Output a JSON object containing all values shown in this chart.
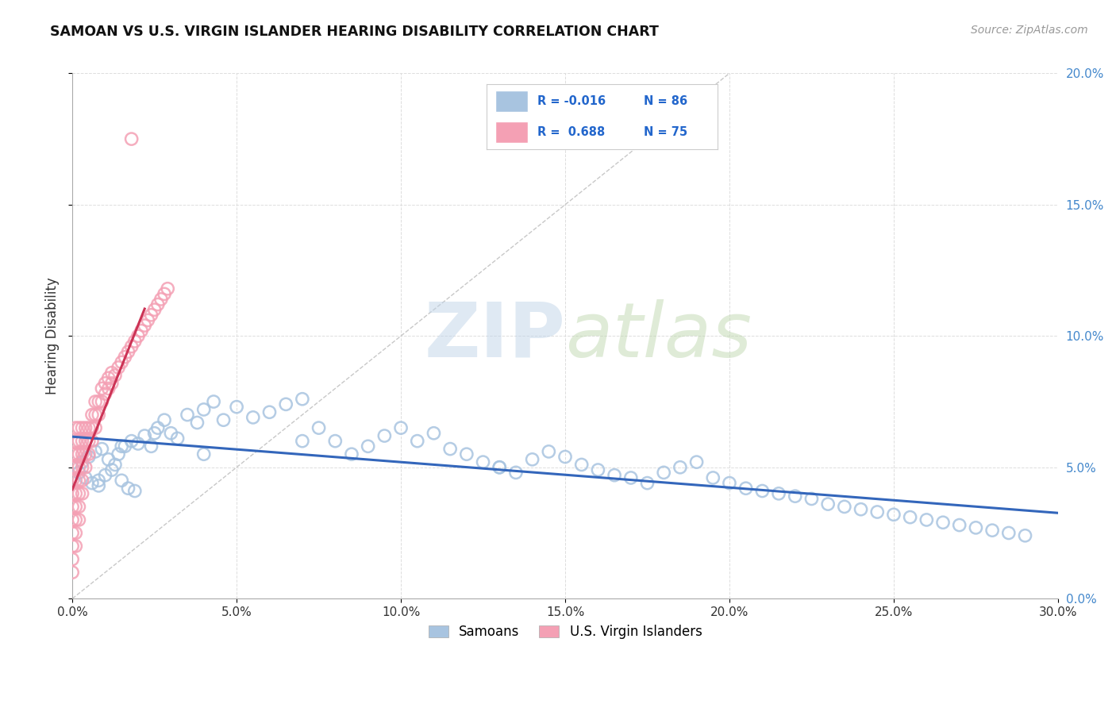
{
  "title": "SAMOAN VS U.S. VIRGIN ISLANDER HEARING DISABILITY CORRELATION CHART",
  "source_text": "Source: ZipAtlas.com",
  "ylabel": "Hearing Disability",
  "xlim": [
    0.0,
    0.3
  ],
  "ylim": [
    0.0,
    0.2
  ],
  "xticks": [
    0.0,
    0.05,
    0.1,
    0.15,
    0.2,
    0.25,
    0.3
  ],
  "yticks": [
    0.0,
    0.05,
    0.1,
    0.15,
    0.2
  ],
  "xtick_labels": [
    "0.0%",
    "5.0%",
    "10.0%",
    "15.0%",
    "20.0%",
    "25.0%",
    "30.0%"
  ],
  "ytick_labels": [
    "0.0%",
    "5.0%",
    "10.0%",
    "15.0%",
    "20.0%"
  ],
  "blue_color": "#a8c4e0",
  "pink_color": "#f4a0b4",
  "trend_blue": "#3366bb",
  "trend_pink": "#cc3355",
  "ref_line_color": "#c8c8c8",
  "blue_R": -0.016,
  "blue_N": 86,
  "pink_R": 0.688,
  "pink_N": 75,
  "blue_scatter_x": [
    0.001,
    0.002,
    0.003,
    0.004,
    0.005,
    0.006,
    0.007,
    0.008,
    0.009,
    0.01,
    0.011,
    0.012,
    0.013,
    0.014,
    0.015,
    0.016,
    0.017,
    0.018,
    0.019,
    0.02,
    0.022,
    0.024,
    0.026,
    0.028,
    0.03,
    0.032,
    0.035,
    0.038,
    0.04,
    0.043,
    0.046,
    0.05,
    0.055,
    0.06,
    0.065,
    0.07,
    0.075,
    0.08,
    0.085,
    0.09,
    0.095,
    0.1,
    0.105,
    0.11,
    0.115,
    0.12,
    0.125,
    0.13,
    0.135,
    0.14,
    0.145,
    0.15,
    0.155,
    0.16,
    0.165,
    0.17,
    0.175,
    0.18,
    0.185,
    0.19,
    0.195,
    0.2,
    0.205,
    0.21,
    0.215,
    0.22,
    0.225,
    0.23,
    0.235,
    0.24,
    0.245,
    0.25,
    0.255,
    0.26,
    0.265,
    0.27,
    0.275,
    0.28,
    0.285,
    0.29,
    0.008,
    0.015,
    0.025,
    0.04,
    0.07,
    0.13
  ],
  "blue_scatter_y": [
    0.05,
    0.048,
    0.052,
    0.046,
    0.054,
    0.044,
    0.056,
    0.043,
    0.057,
    0.047,
    0.053,
    0.049,
    0.051,
    0.055,
    0.045,
    0.058,
    0.042,
    0.06,
    0.041,
    0.059,
    0.062,
    0.058,
    0.065,
    0.068,
    0.063,
    0.061,
    0.07,
    0.067,
    0.072,
    0.075,
    0.068,
    0.073,
    0.069,
    0.071,
    0.074,
    0.076,
    0.065,
    0.06,
    0.055,
    0.058,
    0.062,
    0.065,
    0.06,
    0.063,
    0.057,
    0.055,
    0.052,
    0.05,
    0.048,
    0.053,
    0.056,
    0.054,
    0.051,
    0.049,
    0.047,
    0.046,
    0.044,
    0.048,
    0.05,
    0.052,
    0.046,
    0.044,
    0.042,
    0.041,
    0.04,
    0.039,
    0.038,
    0.036,
    0.035,
    0.034,
    0.033,
    0.032,
    0.031,
    0.03,
    0.029,
    0.028,
    0.027,
    0.026,
    0.025,
    0.024,
    0.045,
    0.058,
    0.063,
    0.055,
    0.06,
    0.05
  ],
  "pink_scatter_x": [
    0.0,
    0.0,
    0.0,
    0.0,
    0.0,
    0.0,
    0.0,
    0.0,
    0.0,
    0.0,
    0.001,
    0.001,
    0.001,
    0.001,
    0.001,
    0.001,
    0.001,
    0.001,
    0.001,
    0.001,
    0.002,
    0.002,
    0.002,
    0.002,
    0.002,
    0.002,
    0.002,
    0.002,
    0.003,
    0.003,
    0.003,
    0.003,
    0.003,
    0.003,
    0.004,
    0.004,
    0.004,
    0.004,
    0.005,
    0.005,
    0.005,
    0.006,
    0.006,
    0.006,
    0.007,
    0.007,
    0.007,
    0.008,
    0.008,
    0.009,
    0.009,
    0.01,
    0.01,
    0.011,
    0.011,
    0.012,
    0.012,
    0.013,
    0.014,
    0.015,
    0.016,
    0.017,
    0.018,
    0.019,
    0.02,
    0.021,
    0.022,
    0.023,
    0.024,
    0.025,
    0.026,
    0.027,
    0.028,
    0.029,
    0.018
  ],
  "pink_scatter_y": [
    0.01,
    0.015,
    0.02,
    0.025,
    0.03,
    0.035,
    0.04,
    0.045,
    0.05,
    0.055,
    0.02,
    0.025,
    0.03,
    0.035,
    0.04,
    0.045,
    0.05,
    0.055,
    0.06,
    0.065,
    0.03,
    0.035,
    0.04,
    0.045,
    0.05,
    0.055,
    0.06,
    0.065,
    0.04,
    0.045,
    0.05,
    0.055,
    0.06,
    0.065,
    0.05,
    0.055,
    0.06,
    0.065,
    0.055,
    0.06,
    0.065,
    0.06,
    0.065,
    0.07,
    0.065,
    0.07,
    0.075,
    0.07,
    0.075,
    0.075,
    0.08,
    0.078,
    0.082,
    0.08,
    0.084,
    0.082,
    0.086,
    0.085,
    0.088,
    0.09,
    0.092,
    0.094,
    0.096,
    0.098,
    0.1,
    0.102,
    0.104,
    0.106,
    0.108,
    0.11,
    0.112,
    0.114,
    0.116,
    0.118,
    0.175
  ]
}
